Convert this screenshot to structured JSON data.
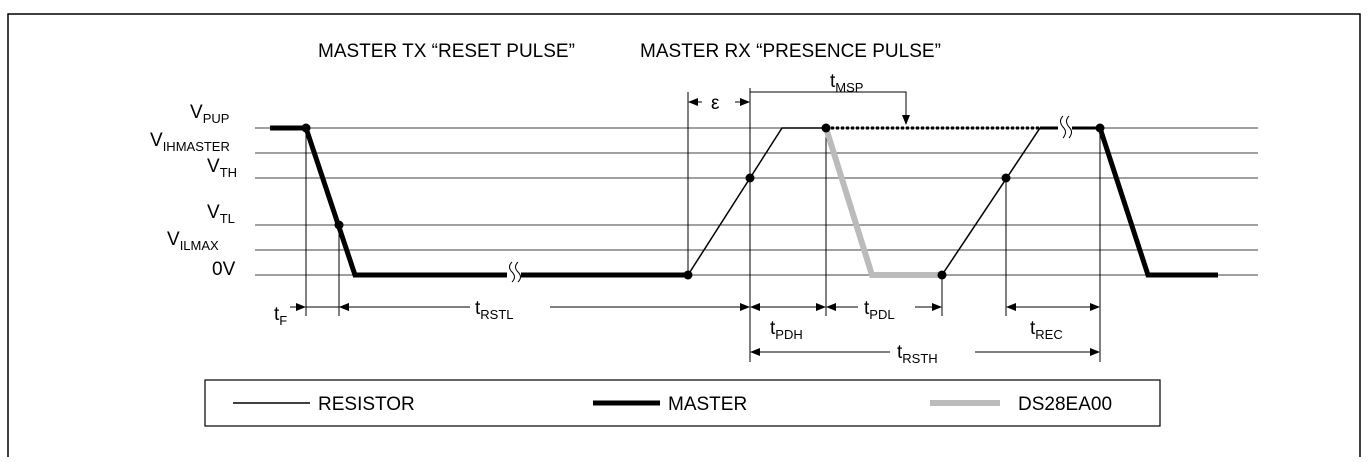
{
  "title_left": "MASTER TX “RESET PULSE”",
  "title_right": "MASTER RX “PRESENCE PULSE”",
  "levels": [
    {
      "main": "V",
      "sub": "PUP"
    },
    {
      "main": "V",
      "sub": "IHMASTER"
    },
    {
      "main": "V",
      "sub": "TH"
    },
    {
      "main": "V",
      "sub": "TL"
    },
    {
      "main": "V",
      "sub": "ILMAX"
    },
    {
      "main": "0V"
    }
  ],
  "timings": [
    {
      "main": "t",
      "sub": "F"
    },
    {
      "main": "t",
      "sub": "RSTL"
    },
    {
      "main": "t",
      "sub": "PDH"
    },
    {
      "main": "t",
      "sub": "PDL"
    },
    {
      "main": "t",
      "sub": "REC"
    },
    {
      "main": "t",
      "sub": "RSTH"
    },
    {
      "main": "t",
      "sub": "MSP"
    }
  ],
  "epsilon": "ε",
  "legend": [
    "RESISTOR",
    "MASTER",
    "DS28EA00"
  ]
}
